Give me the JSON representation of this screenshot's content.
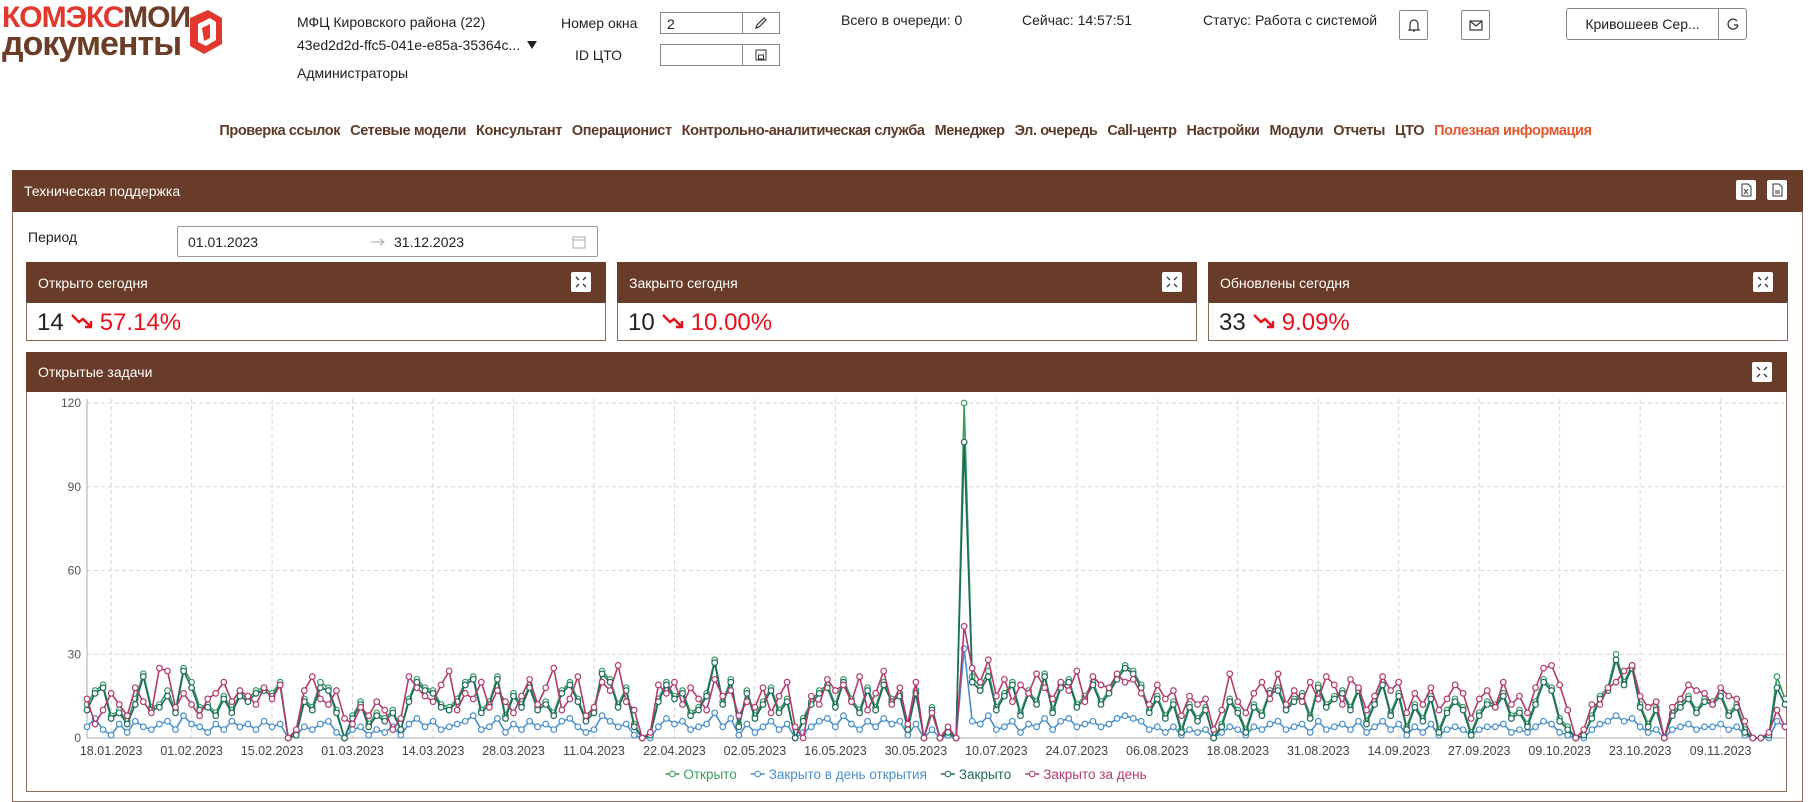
{
  "header": {
    "logo": {
      "part1": "КОМЭКС",
      "part2": "МОИ",
      "part3": "документы"
    },
    "org": "МФЦ Кировского района (22)",
    "org_id": "43ed2d2d-ffc5-041e-e85a-35364c...",
    "role": "Администраторы",
    "window_label": "Номер окна",
    "window_value": "2",
    "cto_label": "ID ЦТО",
    "queue": "Всего в очереди: 0",
    "now": "Сейчас: 14:57:51",
    "status": "Статус: Работа с системой",
    "user": "Кривошеев Сер..."
  },
  "nav": [
    "Проверка ссылок",
    "Сетевые модели",
    "Консультант",
    "Операционист",
    "Контрольно-аналитическая служба",
    "Менеджер",
    "Эл. очередь",
    "Call-центр",
    "Настройки",
    "Модули",
    "Отчеты",
    "ЦТО",
    "Полезная информация"
  ],
  "panel": {
    "title": "Техническая поддержка",
    "period_label": "Период",
    "period_from": "01.01.2023",
    "period_to": "31.12.2023"
  },
  "cards": [
    {
      "title": "Открыто сегодня",
      "value": "14",
      "change": "57.14%"
    },
    {
      "title": "Закрыто сегодня",
      "value": "10",
      "change": "10.00%"
    },
    {
      "title": "Обновлены сегодня",
      "value": "33",
      "change": "9.09%"
    }
  ],
  "chart_data": {
    "type": "line",
    "title": "Открытые задачи",
    "categories": [
      null,
      null,
      null,
      "18.01.2023",
      null,
      null,
      null,
      null,
      null,
      null,
      null,
      null,
      null,
      "01.02.2023",
      null,
      null,
      null,
      null,
      null,
      null,
      null,
      null,
      null,
      "15.02.2023",
      null,
      null,
      null,
      null,
      null,
      null,
      null,
      null,
      null,
      "01.03.2023",
      null,
      null,
      null,
      null,
      null,
      null,
      null,
      null,
      null,
      "14.03.2023",
      null,
      null,
      null,
      null,
      null,
      null,
      null,
      null,
      null,
      "28.03.2023",
      null,
      null,
      null,
      null,
      null,
      null,
      null,
      null,
      null,
      "11.04.2023",
      null,
      null,
      null,
      null,
      null,
      null,
      null,
      null,
      null,
      "22.04.2023",
      null,
      null,
      null,
      null,
      null,
      null,
      null,
      null,
      null,
      "02.05.2023",
      null,
      null,
      null,
      null,
      null,
      null,
      null,
      null,
      null,
      "16.05.2023",
      null,
      null,
      null,
      null,
      null,
      null,
      null,
      null,
      null,
      "30.05.2023",
      null,
      null,
      null,
      null,
      null,
      null,
      null,
      null,
      null,
      "10.07.2023",
      null,
      null,
      null,
      null,
      null,
      null,
      null,
      null,
      null,
      "24.07.2023",
      null,
      null,
      null,
      null,
      null,
      null,
      null,
      null,
      null,
      "06.08.2023",
      null,
      null,
      null,
      null,
      null,
      null,
      null,
      null,
      null,
      "18.08.2023",
      null,
      null,
      null,
      null,
      null,
      null,
      null,
      null,
      null,
      "31.08.2023",
      null,
      null,
      null,
      null,
      null,
      null,
      null,
      null,
      null,
      "14.09.2023",
      null,
      null,
      null,
      null,
      null,
      null,
      null,
      null,
      null,
      "27.09.2023",
      null,
      null,
      null,
      null,
      null,
      null,
      null,
      null,
      null,
      "09.10.2023",
      null,
      null,
      null,
      null,
      null,
      null,
      null,
      null,
      null,
      "23.10.2023",
      null,
      null,
      null,
      null,
      null,
      null,
      null,
      null,
      null,
      "09.11.2023",
      null,
      null,
      null,
      null,
      null,
      null,
      null,
      null
    ],
    "series": [
      {
        "name": "Открыто",
        "color": "#3a9d5d",
        "values": [
          12,
          17,
          19,
          8,
          10,
          6,
          14,
          23,
          11,
          12,
          17,
          10,
          25,
          20,
          11,
          12,
          9,
          15,
          10,
          16,
          14,
          17,
          18,
          16,
          20,
          0,
          2,
          14,
          11,
          20,
          18,
          10,
          0,
          8,
          13,
          5,
          9,
          7,
          10,
          3,
          14,
          21,
          18,
          17,
          12,
          11,
          14,
          20,
          22,
          10,
          13,
          22,
          8,
          16,
          12,
          19,
          11,
          13,
          9,
          17,
          20,
          14,
          7,
          10,
          24,
          21,
          12,
          18,
          5,
          0,
          1,
          14,
          20,
          15,
          17,
          9,
          11,
          16,
          28,
          13,
          21,
          5,
          17,
          8,
          13,
          18,
          10,
          14,
          0,
          7,
          13,
          17,
          19,
          12,
          21,
          14,
          10,
          18,
          11,
          20,
          14,
          16,
          4,
          17,
          0,
          11,
          0,
          3,
          0,
          120,
          22,
          18,
          24,
          11,
          16,
          20,
          9,
          17,
          13,
          23,
          10,
          19,
          21,
          12,
          15,
          20,
          13,
          17,
          22,
          26,
          24,
          19,
          10,
          15,
          8,
          13,
          3,
          12,
          7,
          11,
          0,
          5,
          14,
          10,
          3,
          12,
          9,
          17,
          18,
          11,
          14,
          16,
          8,
          19,
          12,
          15,
          17,
          11,
          18,
          6,
          13,
          20,
          9,
          16,
          4,
          12,
          7,
          15,
          3,
          10,
          14,
          11,
          2,
          9,
          13,
          12,
          16,
          8,
          10,
          5,
          13,
          21,
          18,
          7,
          4,
          0,
          1,
          8,
          15,
          18,
          30,
          20,
          26,
          12,
          5,
          11,
          0,
          9,
          12,
          15,
          10,
          14,
          13,
          16,
          9,
          12,
          3,
          0,
          0,
          1,
          22,
          14
        ]
      },
      {
        "name": "Закрыто в день открытия",
        "color": "#4a8fc9",
        "values": [
          4,
          7,
          3,
          1,
          5,
          2,
          6,
          4,
          3,
          5,
          6,
          3,
          8,
          5,
          4,
          2,
          5,
          3,
          6,
          4,
          5,
          3,
          6,
          4,
          5,
          0,
          1,
          4,
          3,
          5,
          6,
          2,
          0,
          3,
          4,
          1,
          3,
          2,
          4,
          1,
          5,
          7,
          4,
          6,
          3,
          4,
          5,
          6,
          8,
          3,
          4,
          7,
          2,
          5,
          3,
          6,
          4,
          5,
          3,
          6,
          7,
          4,
          2,
          3,
          8,
          6,
          4,
          5,
          1,
          0,
          0,
          4,
          7,
          5,
          6,
          3,
          4,
          5,
          9,
          4,
          7,
          1,
          5,
          2,
          4,
          6,
          3,
          5,
          0,
          2,
          4,
          6,
          7,
          4,
          8,
          5,
          3,
          6,
          4,
          7,
          5,
          6,
          1,
          5,
          0,
          3,
          0,
          1,
          0,
          32,
          6,
          5,
          8,
          3,
          4,
          6,
          2,
          5,
          4,
          7,
          3,
          6,
          7,
          4,
          5,
          6,
          4,
          5,
          7,
          8,
          7,
          6,
          3,
          4,
          2,
          4,
          1,
          3,
          2,
          3,
          0,
          2,
          4,
          3,
          1,
          4,
          3,
          5,
          6,
          3,
          4,
          5,
          2,
          6,
          3,
          4,
          5,
          3,
          6,
          2,
          4,
          6,
          3,
          5,
          1,
          4,
          2,
          5,
          1,
          3,
          4,
          3,
          1,
          3,
          4,
          4,
          5,
          2,
          3,
          2,
          4,
          6,
          5,
          2,
          1,
          0,
          0,
          3,
          5,
          6,
          8,
          6,
          7,
          4,
          2,
          3,
          0,
          3,
          4,
          5,
          3,
          4,
          4,
          5,
          3,
          4,
          1,
          0,
          0,
          0,
          6,
          4
        ]
      },
      {
        "name": "Закрыто",
        "color": "#1e6b5c",
        "values": [
          10,
          16,
          18,
          7,
          9,
          5,
          12,
          22,
          10,
          11,
          15,
          9,
          24,
          18,
          10,
          11,
          8,
          14,
          9,
          15,
          13,
          16,
          17,
          15,
          19,
          0,
          1,
          13,
          10,
          18,
          17,
          9,
          0,
          7,
          12,
          4,
          8,
          6,
          9,
          3,
          13,
          20,
          17,
          16,
          11,
          10,
          13,
          19,
          21,
          9,
          12,
          21,
          7,
          15,
          11,
          18,
          10,
          12,
          8,
          16,
          19,
          13,
          6,
          9,
          23,
          20,
          11,
          17,
          4,
          0,
          1,
          13,
          19,
          14,
          16,
          8,
          10,
          15,
          27,
          12,
          20,
          4,
          16,
          7,
          12,
          17,
          9,
          13,
          0,
          6,
          12,
          16,
          18,
          11,
          20,
          13,
          9,
          17,
          10,
          19,
          13,
          15,
          3,
          16,
          0,
          10,
          0,
          2,
          0,
          106,
          20,
          17,
          22,
          10,
          15,
          19,
          8,
          16,
          12,
          22,
          9,
          18,
          20,
          11,
          14,
          19,
          12,
          16,
          21,
          25,
          23,
          18,
          9,
          14,
          7,
          12,
          2,
          11,
          6,
          10,
          0,
          4,
          13,
          9,
          2,
          11,
          8,
          16,
          17,
          10,
          13,
          15,
          7,
          18,
          11,
          14,
          16,
          10,
          17,
          5,
          12,
          19,
          8,
          15,
          3,
          11,
          6,
          14,
          2,
          9,
          13,
          10,
          1,
          8,
          12,
          11,
          15,
          7,
          9,
          4,
          12,
          20,
          17,
          6,
          3,
          0,
          1,
          7,
          14,
          17,
          28,
          19,
          25,
          11,
          4,
          10,
          0,
          8,
          11,
          14,
          9,
          13,
          12,
          15,
          8,
          11,
          2,
          0,
          0,
          1,
          18,
          12
        ]
      },
      {
        "name": "Закрыто за день",
        "color": "#b23a6f",
        "values": [
          14,
          5,
          10,
          16,
          12,
          8,
          18,
          13,
          9,
          25,
          24,
          11,
          16,
          12,
          8,
          14,
          16,
          20,
          13,
          17,
          15,
          12,
          18,
          14,
          19,
          0,
          3,
          17,
          22,
          14,
          12,
          17,
          7,
          5,
          11,
          8,
          13,
          10,
          3,
          7,
          22,
          18,
          15,
          13,
          19,
          24,
          10,
          16,
          14,
          20,
          11,
          17,
          13,
          9,
          15,
          21,
          12,
          18,
          25,
          10,
          14,
          22,
          8,
          11,
          20,
          17,
          26,
          13,
          10,
          0,
          2,
          19,
          16,
          20,
          12,
          18,
          14,
          10,
          21,
          15,
          17,
          8,
          13,
          11,
          18,
          9,
          15,
          20,
          4,
          0,
          15,
          12,
          21,
          17,
          19,
          13,
          22,
          10,
          16,
          24,
          12,
          18,
          5,
          20,
          0,
          9,
          0,
          4,
          0,
          40,
          25,
          20,
          28,
          15,
          21,
          13,
          19,
          16,
          23,
          18,
          14,
          20,
          17,
          24,
          13,
          22,
          19,
          18,
          23,
          20,
          21,
          16,
          12,
          19,
          14,
          17,
          8,
          15,
          12,
          14,
          3,
          10,
          23,
          13,
          9,
          16,
          20,
          14,
          23,
          12,
          17,
          13,
          20,
          14,
          22,
          19,
          12,
          21,
          18,
          10,
          15,
          22,
          17,
          20,
          9,
          16,
          12,
          18,
          10,
          14,
          19,
          16,
          7,
          14,
          17,
          11,
          20,
          12,
          15,
          9,
          18,
          25,
          26,
          19,
          10,
          0,
          3,
          12,
          12,
          18,
          20,
          24,
          26,
          15,
          11,
          13,
          0,
          11,
          14,
          19,
          17,
          16,
          12,
          18,
          15,
          14,
          6,
          0,
          0,
          2,
          10,
          4
        ]
      }
    ],
    "ylim": [
      0,
      120
    ],
    "yticks": [
      0,
      30,
      60,
      90,
      120
    ],
    "grid": true,
    "legend": "bottom"
  }
}
